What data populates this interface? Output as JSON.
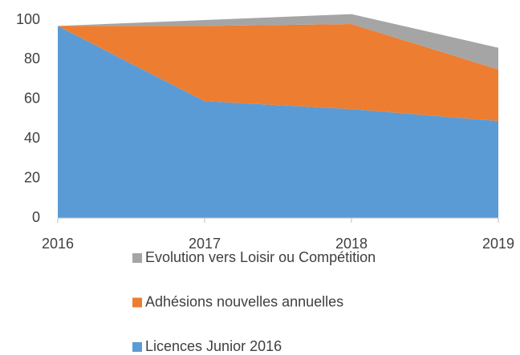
{
  "chart_data": {
    "type": "stacked_area",
    "categories": [
      "2016",
      "2017",
      "2018",
      "2019"
    ],
    "series": [
      {
        "name": "Licences Junior 2016",
        "color": "#5b9bd5",
        "values": [
          97,
          59,
          55,
          49
        ]
      },
      {
        "name": "Adhésions nouvelles annuelles",
        "color": "#ed7d31",
        "values": [
          0,
          38,
          43,
          26
        ]
      },
      {
        "name": "Evolution vers Loisir ou Compétition",
        "color": "#a5a5a5",
        "values": [
          0,
          3,
          5,
          11
        ]
      }
    ],
    "ylim": [
      0,
      100
    ],
    "yticks": [
      0,
      20,
      40,
      60,
      80,
      100
    ],
    "grid": false,
    "legend": "bottom"
  }
}
